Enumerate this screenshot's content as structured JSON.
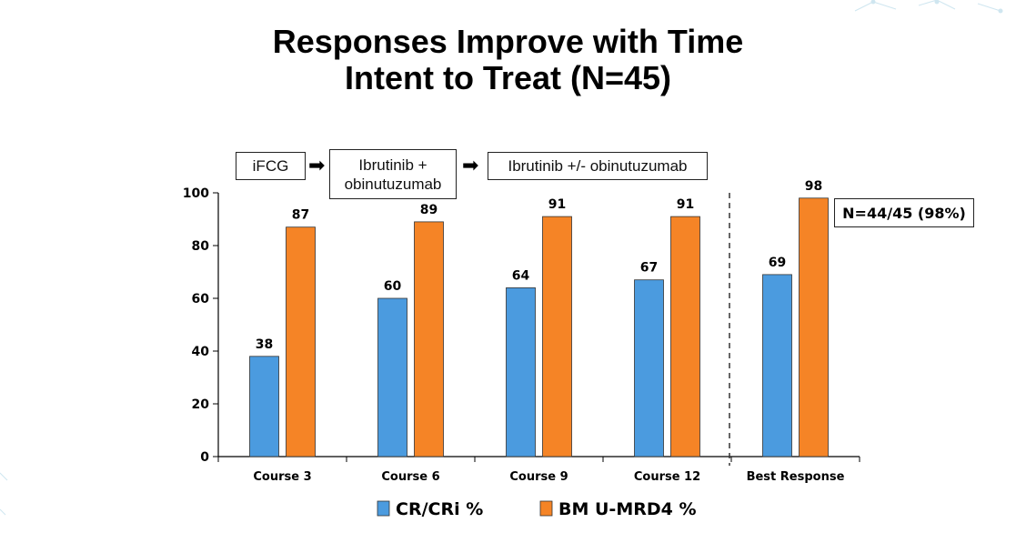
{
  "title": {
    "line1": "Responses Improve with Time",
    "line2": "Intent to Treat (N=45)"
  },
  "stages": [
    {
      "label": "iFCG"
    },
    {
      "label": "Ibrutinib + obinutuzumab"
    },
    {
      "label": "Ibrutinib +/- obinutuzumab"
    }
  ],
  "callout": "N=44/45 (98%)",
  "colors": {
    "cr": "#4b9bdf",
    "mrd": "#f58426",
    "axis": "#000000"
  },
  "chart_data": {
    "type": "bar",
    "categories": [
      "Course 3",
      "Course 6",
      "Course 9",
      "Course 12",
      "Best Response"
    ],
    "series": [
      {
        "name": "CR/CRi %",
        "values": [
          38,
          60,
          64,
          67,
          69
        ]
      },
      {
        "name": "BM U-MRD4 %",
        "values": [
          87,
          89,
          91,
          91,
          98
        ]
      }
    ],
    "ylim": [
      0,
      100
    ],
    "yticks": [
      0,
      20,
      40,
      60,
      80,
      100
    ],
    "legend_position": "bottom",
    "grid": false
  }
}
